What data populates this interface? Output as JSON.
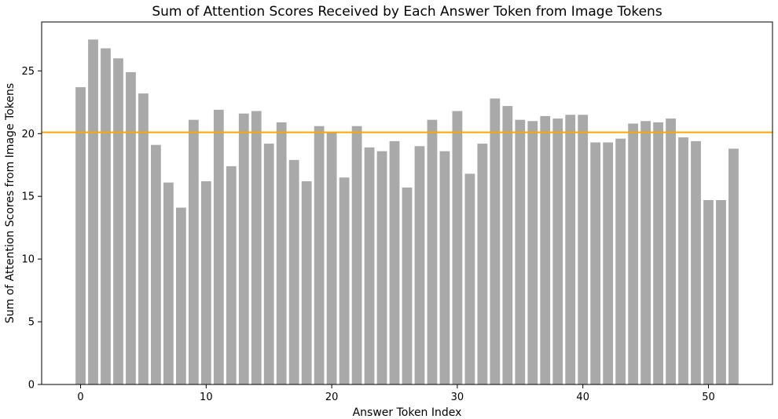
{
  "chart_data": {
    "type": "bar",
    "title": "Sum of Attention Scores Received by Each Answer Token from Image Tokens",
    "xlabel": "Answer Token Index",
    "ylabel": "Sum of Attention Scores from Image Tokens",
    "x": [
      0,
      1,
      2,
      3,
      4,
      5,
      6,
      7,
      8,
      9,
      10,
      11,
      12,
      13,
      14,
      15,
      16,
      17,
      18,
      19,
      20,
      21,
      22,
      23,
      24,
      25,
      26,
      27,
      28,
      29,
      30,
      31,
      32,
      33,
      34,
      35,
      36,
      37,
      38,
      39,
      40,
      41,
      42,
      43,
      44,
      45,
      46,
      47,
      48,
      49,
      50,
      51,
      52
    ],
    "values": [
      23.7,
      27.5,
      26.8,
      26.0,
      24.9,
      23.2,
      19.1,
      16.1,
      14.1,
      21.1,
      16.2,
      21.9,
      17.4,
      21.6,
      21.8,
      19.2,
      20.9,
      17.9,
      16.2,
      20.6,
      20.1,
      16.5,
      20.6,
      18.9,
      18.6,
      19.4,
      15.7,
      19.0,
      21.1,
      18.6,
      21.8,
      16.8,
      19.2,
      22.8,
      22.2,
      21.1,
      21.0,
      21.4,
      21.2,
      21.5,
      21.5,
      19.3,
      19.3,
      19.6,
      20.8,
      21.0,
      20.9,
      21.2,
      19.7,
      19.4,
      14.7,
      14.7,
      18.8
    ],
    "bar_color": "#a9a9a9",
    "mean_line": {
      "value": 20.1,
      "color": "#ffa500"
    },
    "xlim": [
      -3.1,
      55.1
    ],
    "ylim": [
      0,
      28.9
    ],
    "xticks": [
      0,
      10,
      20,
      30,
      40,
      50
    ],
    "xtick_labels": [
      "0",
      "10",
      "20",
      "30",
      "40",
      "50"
    ],
    "yticks": [
      0,
      5,
      10,
      15,
      20,
      25
    ],
    "ytick_labels": [
      "0",
      "5",
      "10",
      "15",
      "20",
      "25"
    ],
    "grid": false,
    "legend": "none"
  }
}
